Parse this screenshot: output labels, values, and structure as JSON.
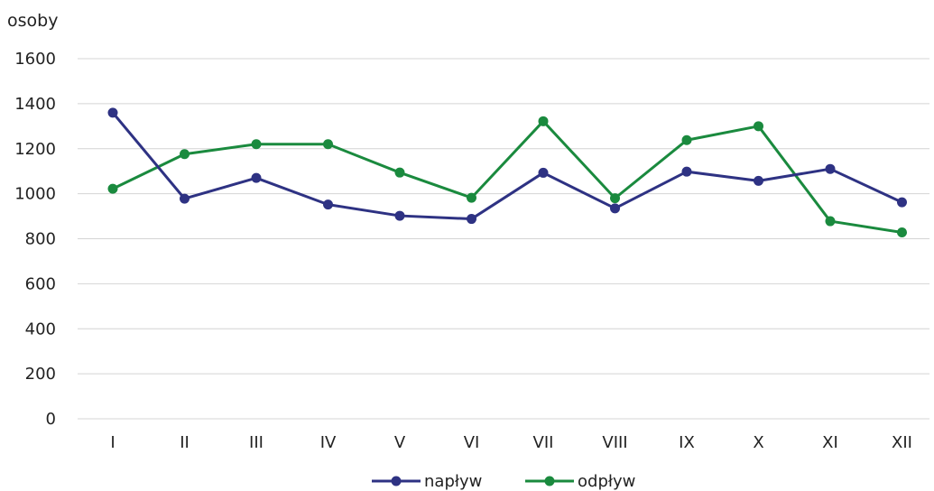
{
  "chart_data": {
    "type": "line",
    "unit_label": "osoby",
    "categories": [
      "I",
      "II",
      "III",
      "IV",
      "V",
      "VI",
      "VII",
      "VIII",
      "IX",
      "X",
      "XI",
      "XII"
    ],
    "ylim": [
      0,
      1600
    ],
    "yticks": [
      "0",
      "200",
      "400",
      "600",
      "800",
      "1000",
      "1200",
      "1400",
      "1600"
    ],
    "grid": true,
    "legend_position": "bottom-center",
    "series": [
      {
        "name": "napływ",
        "color": "#2e3283",
        "values": [
          1360,
          978,
          1070,
          952,
          902,
          888,
          1093,
          935,
          1098,
          1057,
          1110,
          962
        ]
      },
      {
        "name": "odpływ",
        "color": "#1a8a3e",
        "values": [
          1022,
          1176,
          1220,
          1220,
          1094,
          982,
          1322,
          980,
          1238,
          1300,
          878,
          828
        ]
      }
    ]
  }
}
